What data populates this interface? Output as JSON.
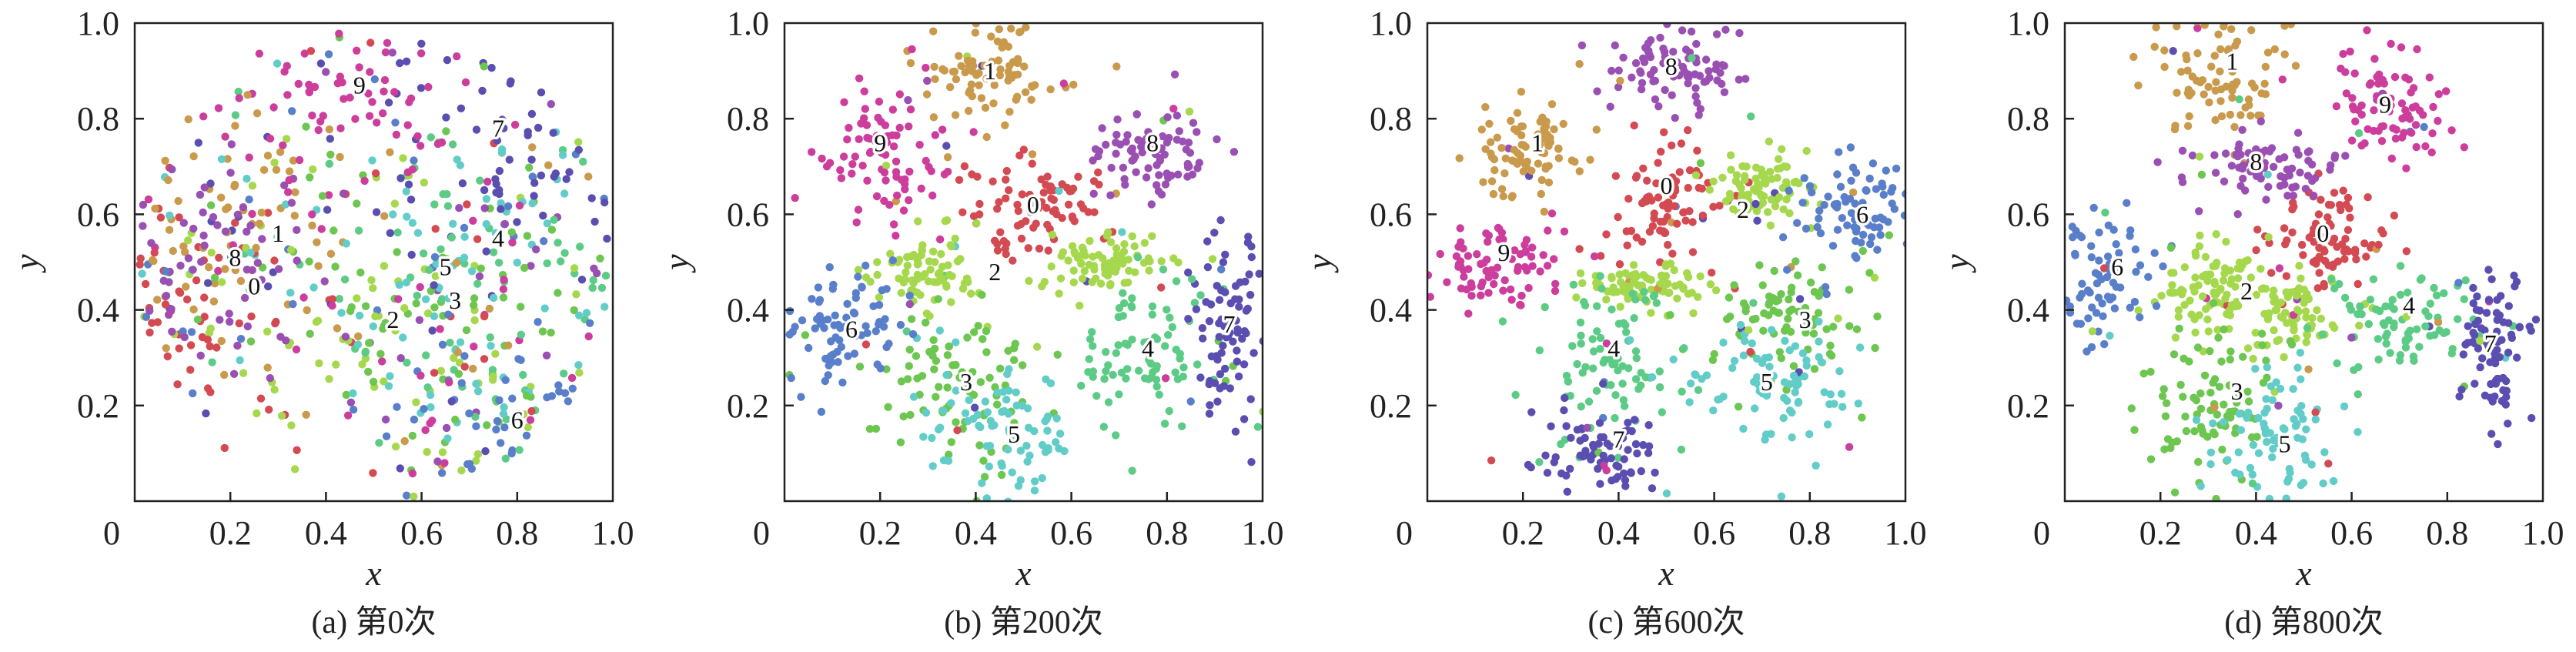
{
  "colors": {
    "0": "#d44a52",
    "1": "#c99a4c",
    "2": "#a6d84e",
    "3": "#6cc650",
    "4": "#5ccb86",
    "5": "#62cdc8",
    "6": "#5a7fca",
    "7": "#5a4fb0",
    "8": "#9a4fb2",
    "9": "#cc3d9c"
  },
  "chart_data": [
    {
      "type": "scatter",
      "title": "(a)  第0次",
      "xlabel": "x",
      "ylabel": "y",
      "xlim": [
        0,
        1
      ],
      "ylim": [
        0,
        1
      ],
      "xtick_labels": [
        "0",
        "0.2",
        "0.4",
        "0.6",
        "0.8",
        "1.0"
      ],
      "ytick_labels": [
        "0.2",
        "0.4",
        "0.6",
        "0.8",
        "1.0"
      ],
      "mixed": true,
      "clusters": [
        {
          "label": "0",
          "center": [
            0.12,
            0.42
          ],
          "spread": [
            0.12,
            0.12
          ]
        },
        {
          "label": "1",
          "center": [
            0.22,
            0.6
          ],
          "spread": [
            0.13,
            0.13
          ]
        },
        {
          "label": "2",
          "center": [
            0.5,
            0.3
          ],
          "spread": [
            0.18,
            0.16
          ]
        },
        {
          "label": "3",
          "center": [
            0.62,
            0.4
          ],
          "spread": [
            0.18,
            0.16
          ]
        },
        {
          "label": "4",
          "center": [
            0.8,
            0.5
          ],
          "spread": [
            0.17,
            0.17
          ]
        },
        {
          "label": "5",
          "center": [
            0.65,
            0.45
          ],
          "spread": [
            0.16,
            0.16
          ]
        },
        {
          "label": "6",
          "center": [
            0.78,
            0.15
          ],
          "spread": [
            0.12,
            0.1
          ]
        },
        {
          "label": "7",
          "center": [
            0.8,
            0.75
          ],
          "spread": [
            0.12,
            0.15
          ]
        },
        {
          "label": "8",
          "center": [
            0.15,
            0.5
          ],
          "spread": [
            0.14,
            0.15
          ]
        },
        {
          "label": "9",
          "center": [
            0.45,
            0.85
          ],
          "spread": [
            0.15,
            0.09
          ]
        }
      ],
      "annotations": [
        {
          "text": "9",
          "at": [
            0.47,
            0.87
          ]
        },
        {
          "text": "7",
          "at": [
            0.76,
            0.78
          ]
        },
        {
          "text": "1",
          "at": [
            0.3,
            0.56
          ]
        },
        {
          "text": "4",
          "at": [
            0.76,
            0.55
          ]
        },
        {
          "text": "8",
          "at": [
            0.21,
            0.51
          ]
        },
        {
          "text": "5",
          "at": [
            0.65,
            0.49
          ]
        },
        {
          "text": "0",
          "at": [
            0.25,
            0.45
          ]
        },
        {
          "text": "3",
          "at": [
            0.67,
            0.42
          ]
        },
        {
          "text": "2",
          "at": [
            0.54,
            0.38
          ]
        },
        {
          "text": "6",
          "at": [
            0.8,
            0.17
          ]
        }
      ]
    },
    {
      "type": "scatter",
      "title": "(b)  第200次",
      "xlabel": "x",
      "ylabel": "y",
      "xlim": [
        0,
        1
      ],
      "ylim": [
        0,
        1
      ],
      "xtick_labels": [
        "0",
        "0.2",
        "0.4",
        "0.6",
        "0.8",
        "1.0"
      ],
      "ytick_labels": [
        "0.2",
        "0.4",
        "0.6",
        "0.8",
        "1.0"
      ],
      "mixed": false,
      "clusters": [
        {
          "label": "0",
          "center": [
            0.52,
            0.62
          ],
          "spread": [
            0.07,
            0.05
          ]
        },
        {
          "label": "1",
          "center": [
            0.42,
            0.88
          ],
          "spread": [
            0.07,
            0.06
          ]
        },
        {
          "label": "2",
          "center": [
            0.3,
            0.48
          ],
          "spread": [
            0.06,
            0.04
          ]
        },
        {
          "label": "2",
          "center": [
            0.67,
            0.5
          ],
          "spread": [
            0.06,
            0.03
          ]
        },
        {
          "label": "3",
          "center": [
            0.35,
            0.24
          ],
          "spread": [
            0.1,
            0.08
          ]
        },
        {
          "label": "4",
          "center": [
            0.76,
            0.3
          ],
          "spread": [
            0.08,
            0.08
          ]
        },
        {
          "label": "5",
          "center": [
            0.46,
            0.14
          ],
          "spread": [
            0.09,
            0.07
          ]
        },
        {
          "label": "6",
          "center": [
            0.12,
            0.35
          ],
          "spread": [
            0.07,
            0.06
          ]
        },
        {
          "label": "7",
          "center": [
            0.93,
            0.35
          ],
          "spread": [
            0.04,
            0.1
          ]
        },
        {
          "label": "8",
          "center": [
            0.77,
            0.73
          ],
          "spread": [
            0.08,
            0.05
          ]
        },
        {
          "label": "9",
          "center": [
            0.2,
            0.73
          ],
          "spread": [
            0.07,
            0.08
          ]
        }
      ],
      "annotations": [
        {
          "text": "1",
          "at": [
            0.43,
            0.9
          ]
        },
        {
          "text": "9",
          "at": [
            0.2,
            0.75
          ]
        },
        {
          "text": "8",
          "at": [
            0.77,
            0.75
          ]
        },
        {
          "text": "0",
          "at": [
            0.52,
            0.62
          ]
        },
        {
          "text": "2",
          "at": [
            0.44,
            0.48
          ]
        },
        {
          "text": "6",
          "at": [
            0.14,
            0.36
          ]
        },
        {
          "text": "7",
          "at": [
            0.93,
            0.37
          ]
        },
        {
          "text": "4",
          "at": [
            0.76,
            0.32
          ]
        },
        {
          "text": "3",
          "at": [
            0.38,
            0.25
          ]
        },
        {
          "text": "5",
          "at": [
            0.48,
            0.14
          ]
        }
      ]
    },
    {
      "type": "scatter",
      "title": "(c)  第600次",
      "xlabel": "x",
      "ylabel": "y",
      "xlim": [
        0,
        1
      ],
      "ylim": [
        0,
        1
      ],
      "xtick_labels": [
        "0",
        "0.2",
        "0.4",
        "0.6",
        "0.8",
        "1.0"
      ],
      "ytick_labels": [
        "0.2",
        "0.4",
        "0.6",
        "0.8",
        "1.0"
      ],
      "mixed": false,
      "clusters": [
        {
          "label": "0",
          "center": [
            0.5,
            0.63
          ],
          "spread": [
            0.06,
            0.06
          ]
        },
        {
          "label": "1",
          "center": [
            0.22,
            0.74
          ],
          "spread": [
            0.06,
            0.05
          ]
        },
        {
          "label": "2",
          "center": [
            0.7,
            0.65
          ],
          "spread": [
            0.05,
            0.04
          ]
        },
        {
          "label": "2",
          "center": [
            0.45,
            0.45
          ],
          "spread": [
            0.06,
            0.02
          ]
        },
        {
          "label": "3",
          "center": [
            0.76,
            0.38
          ],
          "spread": [
            0.09,
            0.06
          ]
        },
        {
          "label": "4",
          "center": [
            0.37,
            0.3
          ],
          "spread": [
            0.08,
            0.08
          ]
        },
        {
          "label": "5",
          "center": [
            0.72,
            0.25
          ],
          "spread": [
            0.1,
            0.07
          ]
        },
        {
          "label": "6",
          "center": [
            0.9,
            0.6
          ],
          "spread": [
            0.06,
            0.05
          ]
        },
        {
          "label": "7",
          "center": [
            0.38,
            0.1
          ],
          "spread": [
            0.07,
            0.05
          ]
        },
        {
          "label": "8",
          "center": [
            0.52,
            0.9
          ],
          "spread": [
            0.08,
            0.04
          ]
        },
        {
          "label": "9",
          "center": [
            0.14,
            0.5
          ],
          "spread": [
            0.08,
            0.05
          ]
        }
      ],
      "annotations": [
        {
          "text": "8",
          "at": [
            0.51,
            0.91
          ]
        },
        {
          "text": "1",
          "at": [
            0.23,
            0.75
          ]
        },
        {
          "text": "0",
          "at": [
            0.5,
            0.66
          ]
        },
        {
          "text": "2",
          "at": [
            0.66,
            0.61
          ]
        },
        {
          "text": "6",
          "at": [
            0.91,
            0.6
          ]
        },
        {
          "text": "9",
          "at": [
            0.16,
            0.52
          ]
        },
        {
          "text": "3",
          "at": [
            0.79,
            0.38
          ]
        },
        {
          "text": "4",
          "at": [
            0.39,
            0.32
          ]
        },
        {
          "text": "5",
          "at": [
            0.71,
            0.25
          ]
        },
        {
          "text": "7",
          "at": [
            0.4,
            0.13
          ]
        }
      ]
    },
    {
      "type": "scatter",
      "title": "(d)  第800次",
      "xlabel": "x",
      "ylabel": "y",
      "xlim": [
        0,
        1
      ],
      "ylim": [
        0,
        1
      ],
      "xtick_labels": [
        "0",
        "0.2",
        "0.4",
        "0.6",
        "0.8",
        "1.0"
      ],
      "ytick_labels": [
        "0.2",
        "0.4",
        "0.6",
        "0.8",
        "1.0"
      ],
      "mixed": false,
      "clusters": [
        {
          "label": "0",
          "center": [
            0.54,
            0.55
          ],
          "spread": [
            0.06,
            0.05
          ]
        },
        {
          "label": "1",
          "center": [
            0.33,
            0.9
          ],
          "spread": [
            0.07,
            0.06
          ]
        },
        {
          "label": "2",
          "center": [
            0.3,
            0.44
          ],
          "spread": [
            0.05,
            0.05
          ]
        },
        {
          "label": "2",
          "center": [
            0.48,
            0.39
          ],
          "spread": [
            0.05,
            0.04
          ]
        },
        {
          "label": "3",
          "center": [
            0.3,
            0.22
          ],
          "spread": [
            0.07,
            0.07
          ]
        },
        {
          "label": "4",
          "center": [
            0.72,
            0.38
          ],
          "spread": [
            0.08,
            0.06
          ]
        },
        {
          "label": "5",
          "center": [
            0.45,
            0.13
          ],
          "spread": [
            0.07,
            0.08
          ]
        },
        {
          "label": "6",
          "center": [
            0.08,
            0.47
          ],
          "spread": [
            0.06,
            0.07
          ]
        },
        {
          "label": "7",
          "center": [
            0.9,
            0.31
          ],
          "spread": [
            0.04,
            0.07
          ]
        },
        {
          "label": "8",
          "center": [
            0.42,
            0.7
          ],
          "spread": [
            0.08,
            0.04
          ]
        },
        {
          "label": "9",
          "center": [
            0.67,
            0.82
          ],
          "spread": [
            0.06,
            0.06
          ]
        }
      ],
      "annotations": [
        {
          "text": "1",
          "at": [
            0.35,
            0.92
          ]
        },
        {
          "text": "9",
          "at": [
            0.67,
            0.83
          ]
        },
        {
          "text": "8",
          "at": [
            0.4,
            0.71
          ]
        },
        {
          "text": "0",
          "at": [
            0.54,
            0.56
          ]
        },
        {
          "text": "6",
          "at": [
            0.11,
            0.49
          ]
        },
        {
          "text": "2",
          "at": [
            0.38,
            0.44
          ]
        },
        {
          "text": "4",
          "at": [
            0.72,
            0.41
          ]
        },
        {
          "text": "7",
          "at": [
            0.89,
            0.33
          ]
        },
        {
          "text": "3",
          "at": [
            0.36,
            0.23
          ]
        },
        {
          "text": "5",
          "at": [
            0.46,
            0.12
          ]
        }
      ]
    }
  ]
}
